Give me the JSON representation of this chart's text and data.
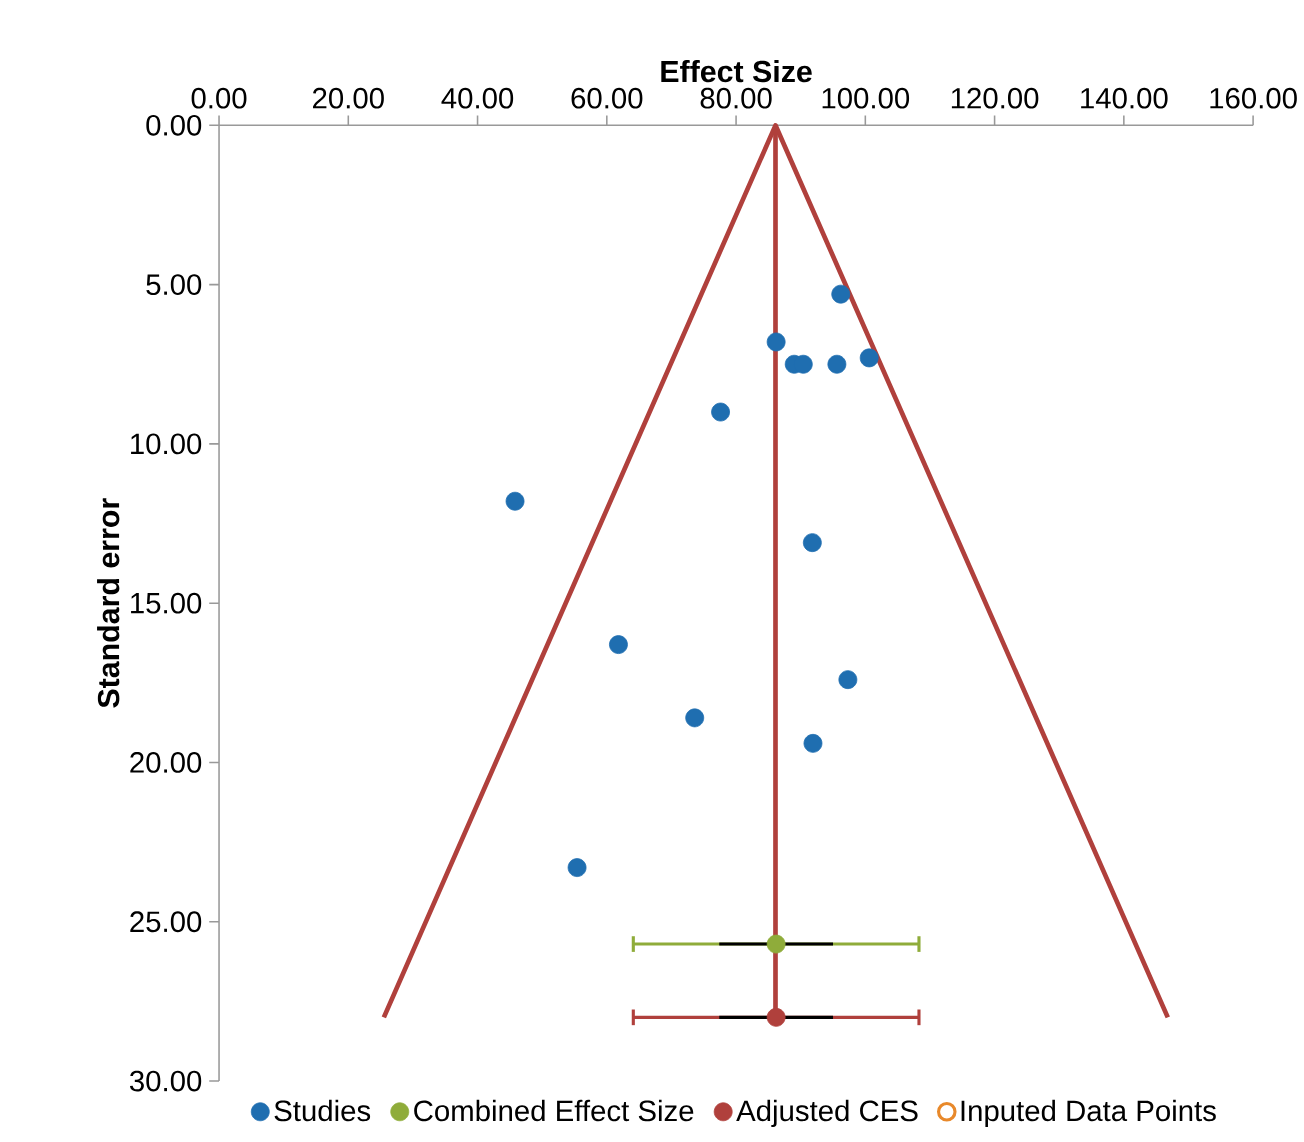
{
  "chart_data": {
    "type": "scatter",
    "xlabel": "Effect Size",
    "ylabel": "Standard error",
    "xlim": [
      0,
      160
    ],
    "ylim": [
      30,
      0
    ],
    "xticks": [
      {
        "value": 0,
        "label": "0.00"
      },
      {
        "value": 20,
        "label": "20.00"
      },
      {
        "value": 40,
        "label": "40.00"
      },
      {
        "value": 60,
        "label": "60.00"
      },
      {
        "value": 80,
        "label": "80.00"
      },
      {
        "value": 100,
        "label": "100.00"
      },
      {
        "value": 120,
        "label": "120.00"
      },
      {
        "value": 140,
        "label": "140.00"
      },
      {
        "value": 160,
        "label": "160.00"
      }
    ],
    "yticks": [
      {
        "value": 0,
        "label": "0.00"
      },
      {
        "value": 5,
        "label": "5.00"
      },
      {
        "value": 10,
        "label": "10.00"
      },
      {
        "value": 15,
        "label": "15.00"
      },
      {
        "value": 20,
        "label": "20.00"
      },
      {
        "value": 25,
        "label": "25.00"
      },
      {
        "value": 30,
        "label": "30.00"
      }
    ],
    "legend": "bottom",
    "series": [
      {
        "type": "line",
        "color": "#b0403c",
        "x": [
          25.5,
          86.1,
          146.8
        ],
        "values": [
          28,
          0,
          28
        ]
      },
      {
        "type": "line",
        "color": "#b0403c",
        "x": [
          86.1,
          86.1
        ],
        "values": [
          0,
          28
        ]
      },
      {
        "name": "Studies",
        "marker": "circle",
        "color": "#1f6eb0",
        "x": [
          96.2,
          86.2,
          89.0,
          90.4,
          95.6,
          100.6,
          77.6,
          45.8,
          91.8,
          61.8,
          97.3,
          73.6,
          91.9,
          55.4
        ],
        "values": [
          5.3,
          6.8,
          7.5,
          7.5,
          7.5,
          7.3,
          9.0,
          11.8,
          13.1,
          16.3,
          17.4,
          18.6,
          19.4,
          23.3
        ]
      },
      {
        "name": "Combined Effect Size",
        "marker": "circle",
        "color": "#8fac3a",
        "x": [
          86.2
        ],
        "values": [
          25.7
        ],
        "xerrors": [
          22.1
        ]
      },
      {
        "type": "line",
        "color": "#000000",
        "x": [
          77.4,
          95.0
        ],
        "values": [
          25.7,
          25.7
        ]
      },
      {
        "name": "Adjusted CES",
        "marker": "circle",
        "color": "#b0403c",
        "x": [
          86.2
        ],
        "values": [
          28.0
        ],
        "xerrors": [
          22.1
        ]
      },
      {
        "type": "line",
        "color": "#000000",
        "x": [
          77.4,
          95.0
        ],
        "values": [
          28.0,
          28.0
        ]
      },
      {
        "name": "Inputed Data Points",
        "marker": "circle",
        "color": "#e8892b"
      }
    ]
  }
}
